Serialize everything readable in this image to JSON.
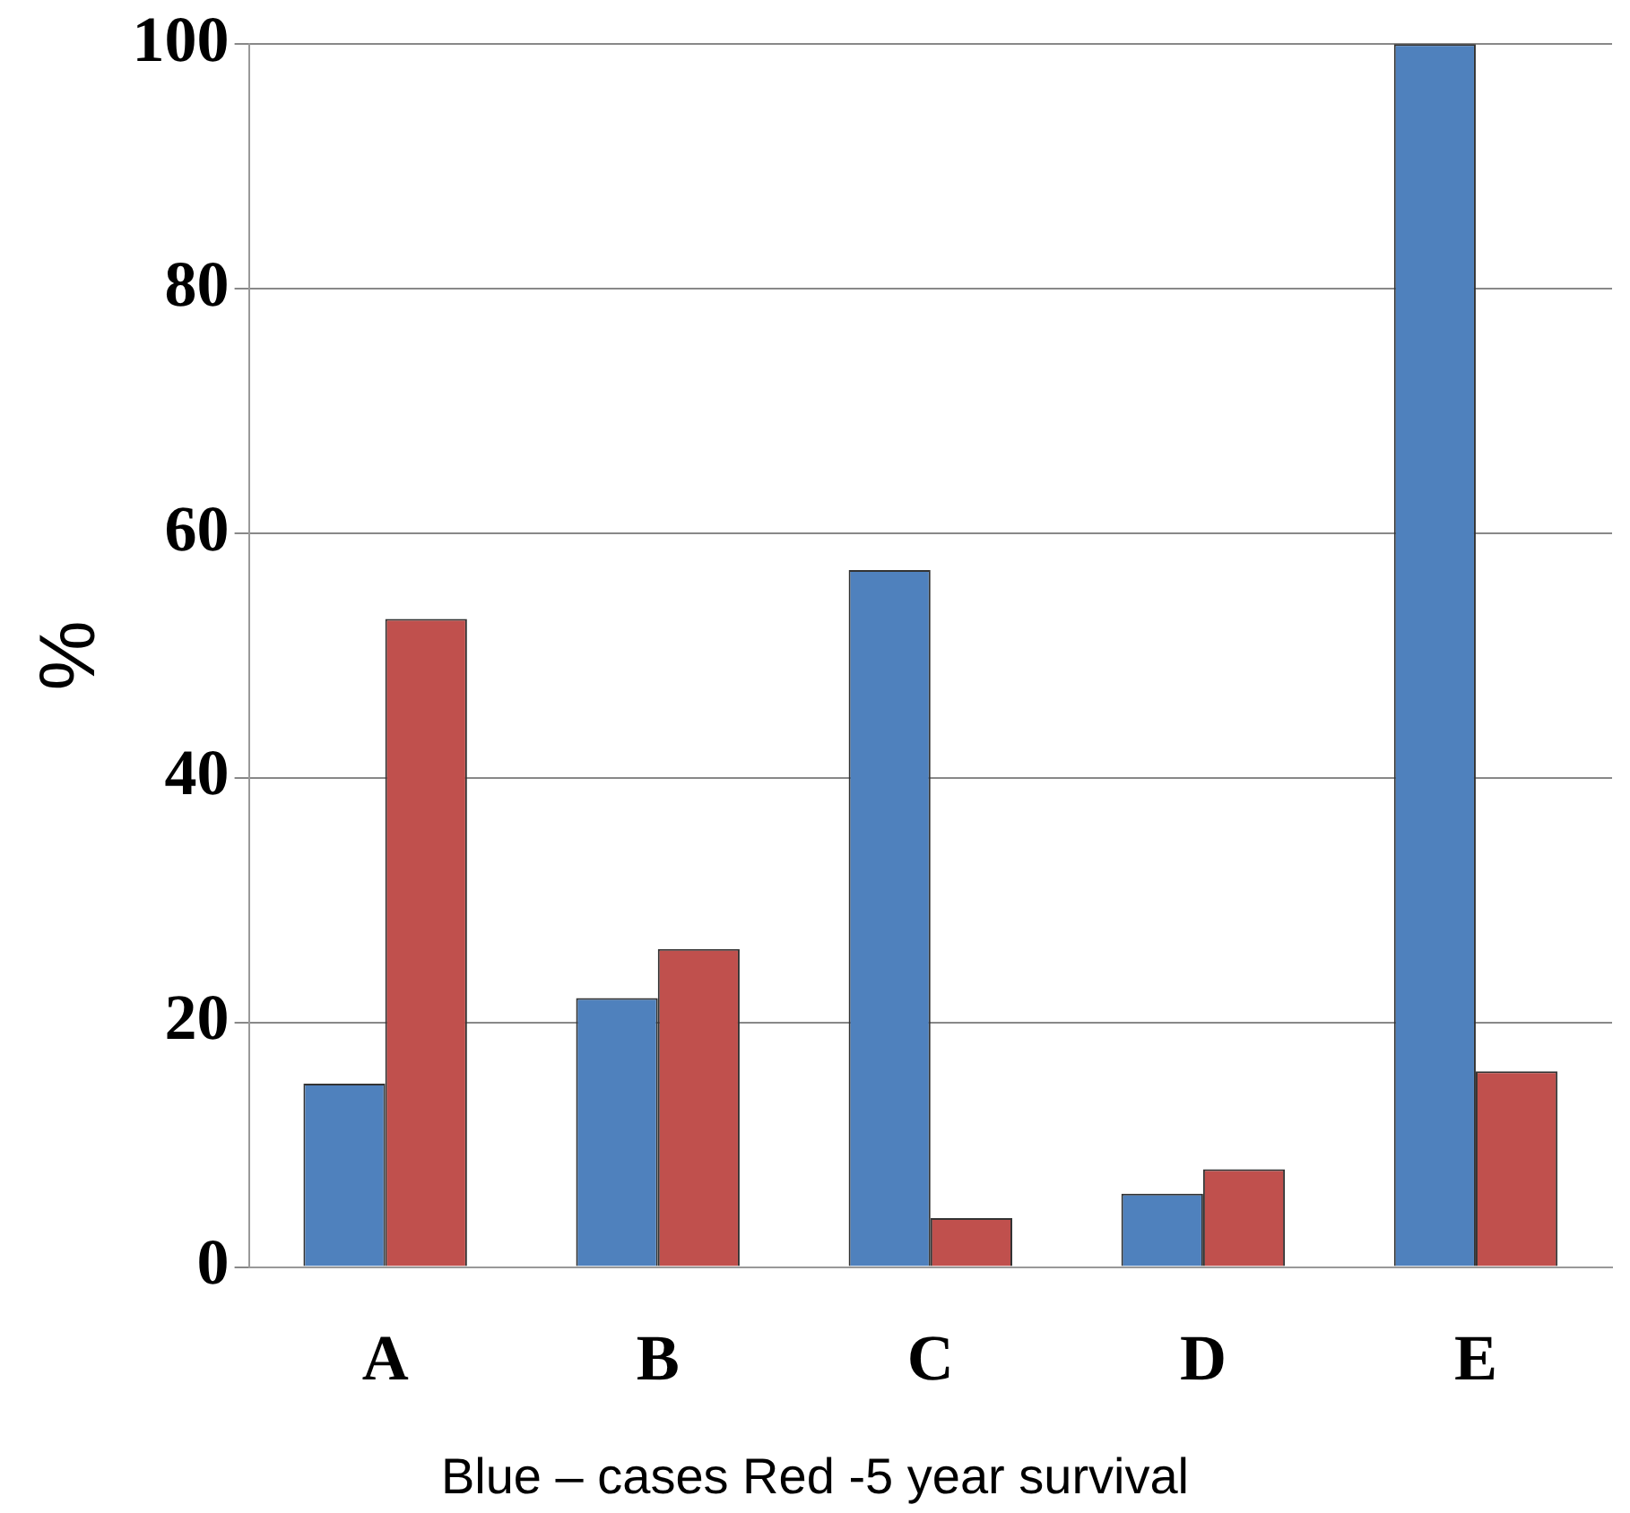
{
  "chart_data": {
    "type": "bar",
    "ylabel": "%",
    "categories": [
      "A",
      "B",
      "C",
      "D",
      "E"
    ],
    "series": [
      {
        "color": "#4f81bd",
        "values": [
          15,
          22,
          57,
          6,
          100
        ]
      },
      {
        "color": "#c0504d",
        "values": [
          53,
          26,
          4,
          8,
          16
        ]
      }
    ],
    "ylim": [
      0,
      100
    ],
    "yticks": [
      0,
      20,
      40,
      60,
      80,
      100
    ],
    "grid": "y",
    "legend": false,
    "annotations": [
      "Blue – cases  Red -5 year survival"
    ]
  }
}
